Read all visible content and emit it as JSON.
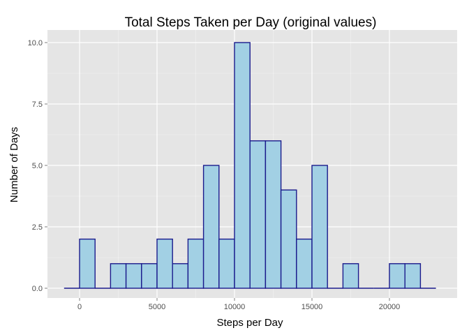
{
  "chart_data": {
    "type": "bar",
    "title": "Total Steps Taken per Day (original values)",
    "xlabel": "Steps per Day",
    "ylabel": "Number of Days",
    "xlim": [
      -1000,
      23000
    ],
    "ylim": [
      0,
      10
    ],
    "bin_width": 1000,
    "x_ticks": [
      {
        "value": 0,
        "label": "0"
      },
      {
        "value": 5000,
        "label": "5000"
      },
      {
        "value": 10000,
        "label": "10000"
      },
      {
        "value": 15000,
        "label": "15000"
      },
      {
        "value": 20000,
        "label": "20000"
      }
    ],
    "y_ticks": [
      {
        "value": 0,
        "label": "0.0"
      },
      {
        "value": 2.5,
        "label": "2.5"
      },
      {
        "value": 5,
        "label": "5.0"
      },
      {
        "value": 7.5,
        "label": "7.5"
      },
      {
        "value": 10,
        "label": "10.0"
      }
    ],
    "bins": [
      {
        "start": -1000,
        "count": 0
      },
      {
        "start": 0,
        "count": 2
      },
      {
        "start": 1000,
        "count": 0
      },
      {
        "start": 2000,
        "count": 1
      },
      {
        "start": 3000,
        "count": 1
      },
      {
        "start": 4000,
        "count": 1
      },
      {
        "start": 5000,
        "count": 2
      },
      {
        "start": 6000,
        "count": 1
      },
      {
        "start": 7000,
        "count": 2
      },
      {
        "start": 8000,
        "count": 5
      },
      {
        "start": 9000,
        "count": 2
      },
      {
        "start": 10000,
        "count": 10
      },
      {
        "start": 11000,
        "count": 6
      },
      {
        "start": 12000,
        "count": 6
      },
      {
        "start": 13000,
        "count": 4
      },
      {
        "start": 14000,
        "count": 2
      },
      {
        "start": 15000,
        "count": 5
      },
      {
        "start": 16000,
        "count": 0
      },
      {
        "start": 17000,
        "count": 1
      },
      {
        "start": 18000,
        "count": 0
      },
      {
        "start": 19000,
        "count": 0
      },
      {
        "start": 20000,
        "count": 1
      },
      {
        "start": 21000,
        "count": 1
      },
      {
        "start": 22000,
        "count": 0
      }
    ],
    "grid": true,
    "legend": "none",
    "colors": {
      "bar_fill": "#a2d0e4",
      "bar_outline": "#1a1a8c",
      "panel_background": "#e5e5e5",
      "grid": "#ffffff"
    }
  }
}
